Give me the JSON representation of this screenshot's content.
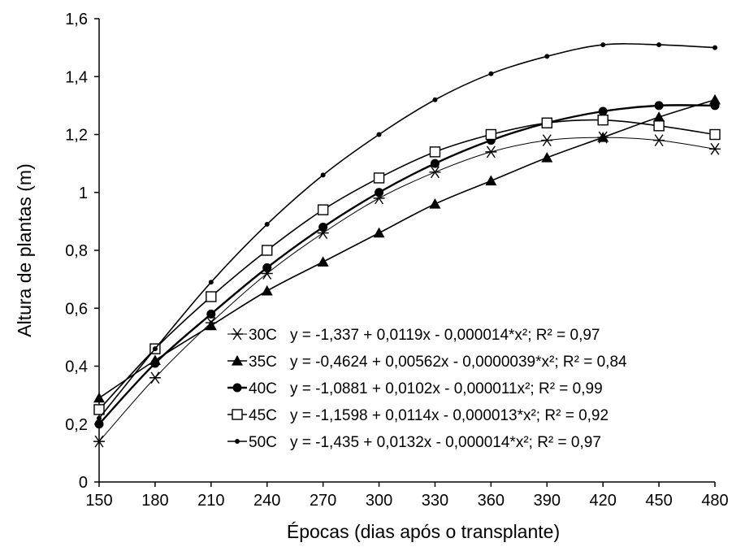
{
  "chart_data": {
    "type": "line",
    "xlabel": "Épocas (dias após o transplante)",
    "ylabel": "Altura de plantas (m)",
    "x": [
      150,
      180,
      210,
      240,
      270,
      300,
      330,
      360,
      390,
      420,
      450,
      480
    ],
    "x_tick_labels": [
      "150",
      "180",
      "210",
      "240",
      "270",
      "300",
      "330",
      "360",
      "390",
      "420",
      "450",
      "480"
    ],
    "xlim": [
      150,
      480
    ],
    "ylim": [
      0,
      1.6
    ],
    "y_ticks": [
      0,
      0.2,
      0.4,
      0.6,
      0.8,
      1,
      1.2,
      1.4,
      1.6
    ],
    "y_tick_labels": [
      "0",
      "0,2",
      "0,4",
      "0,6",
      "0,8",
      "1",
      "1,2",
      "1,4",
      "1,6"
    ],
    "grid": false,
    "legend_position": "bottom-right",
    "series": [
      {
        "name": "30C",
        "equation": "y = -1,337 + 0,0119x - 0,000014*x²; R² = 0,97",
        "marker": "asterisk",
        "color": "#000000",
        "values": [
          0.14,
          0.36,
          0.55,
          0.72,
          0.86,
          0.98,
          1.07,
          1.14,
          1.18,
          1.19,
          1.18,
          1.15
        ]
      },
      {
        "name": "35C",
        "equation": "y = -0,4624 + 0,00562x - 0,0000039*x²; R² = 0,84",
        "marker": "filled-triangle",
        "color": "#000000",
        "values": [
          0.29,
          0.42,
          0.54,
          0.66,
          0.76,
          0.86,
          0.96,
          1.04,
          1.12,
          1.19,
          1.26,
          1.32
        ]
      },
      {
        "name": "40C",
        "equation": "y = -1,0881 + 0,0102x - 0,000011x²; R² = 0,99",
        "marker": "filled-circle",
        "color": "#000000",
        "values": [
          0.2,
          0.41,
          0.58,
          0.74,
          0.88,
          1.0,
          1.1,
          1.18,
          1.24,
          1.28,
          1.3,
          1.3
        ]
      },
      {
        "name": "45C",
        "equation": "y = -1,1598 + 0,0114x - 0,000013*x²; R² = 0,92",
        "marker": "open-square",
        "color": "#000000",
        "values": [
          0.25,
          0.46,
          0.64,
          0.8,
          0.94,
          1.05,
          1.14,
          1.2,
          1.24,
          1.25,
          1.23,
          1.2
        ]
      },
      {
        "name": "50C",
        "equation": "y = -1,435 + 0,0132x - 0,000014*x²; R² = 0,97",
        "marker": "small-dot",
        "color": "#000000",
        "values": [
          0.22,
          0.46,
          0.69,
          0.89,
          1.06,
          1.2,
          1.32,
          1.41,
          1.47,
          1.51,
          1.51,
          1.5
        ]
      }
    ]
  }
}
